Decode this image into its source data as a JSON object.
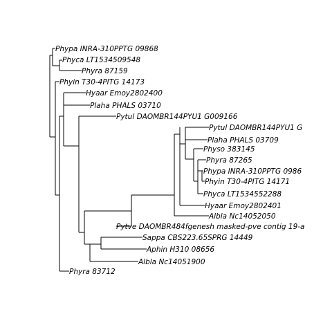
{
  "tree": {
    "leaves": [
      "Phypa INRA-310PPTG 09868",
      "Phyca LT1534509548",
      "Phyra 87159",
      "Phyin T30-4PITG 14173",
      "Hyaar Emoy2802400",
      "Plaha PHALS 03710",
      "Pytul DAOMBR144PYU1 G009166",
      "Pytul DAOMBR144PYU1 G",
      "Plaha PHALS 03709",
      "Physo 383145",
      "Phyra 87265",
      "Phypa INRA-310PPTG 0986",
      "Phyin T30-4PITG 14171",
      "Phyca LT1534552288",
      "Hyaar Emoy2802401",
      "Albla Nc14052050",
      "Pytve DAOMBR484fgenesh masked-pve contig 19-a",
      "Sappa CBS223.65SPRG 14449",
      "Aphin H310 08656",
      "Albla Nc14051900",
      "Phyra 83712"
    ]
  }
}
